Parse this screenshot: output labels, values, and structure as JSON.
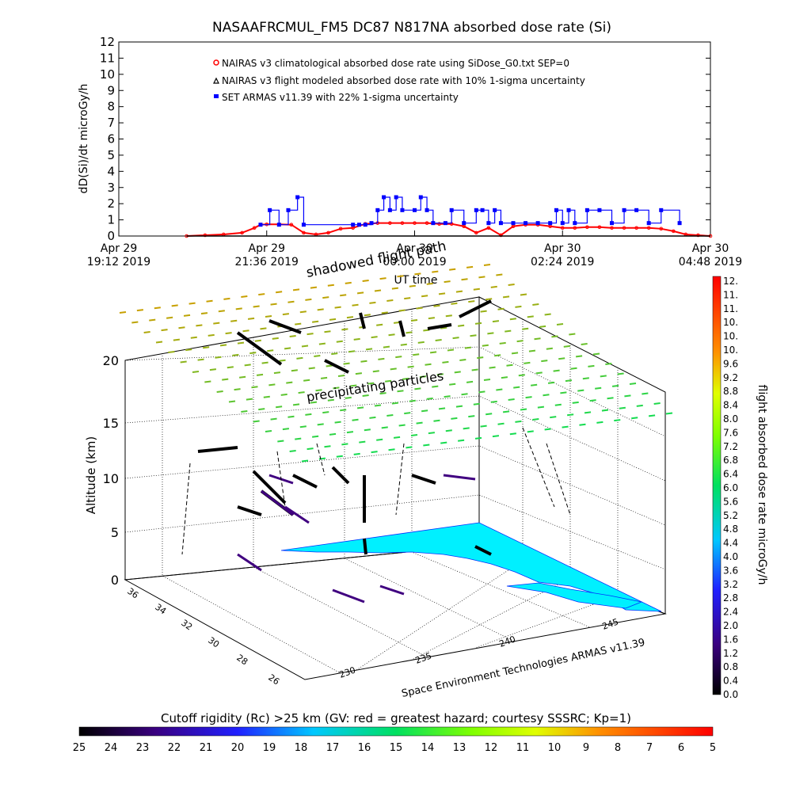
{
  "chart_data": [
    {
      "type": "line",
      "title": "NASAAFRCMUL_FM5 DC87 N817NA absorbed dose rate (Si)",
      "ylabel": "dD(Si)/dt microGy/h",
      "xlabel": "UT time",
      "ylim": [
        0,
        12
      ],
      "yticks": [
        "0",
        "1",
        "2",
        "3",
        "4",
        "5",
        "6",
        "7",
        "8",
        "9",
        "10",
        "11",
        "12"
      ],
      "xticks": [
        {
          "line1": "Apr 29",
          "line2": "19:12 2019"
        },
        {
          "line1": "Apr 29",
          "line2": "21:36 2019"
        },
        {
          "line1": "Apr 30",
          "line2": "00:00 2019"
        },
        {
          "line1": "Apr 30",
          "line2": "02:24 2019"
        },
        {
          "line1": "Apr 30",
          "line2": "04:48 2019"
        }
      ],
      "x_hours_since_first_tick": [
        0,
        2.4,
        4.8,
        7.2,
        9.6
      ],
      "legend": [
        "NAIRAS v3 climatological absorbed dose rate using SiDose_G0.txt SEP=0",
        "NAIRAS v3 flight modeled absorbed dose rate with 10% 1-sigma uncertainty",
        "SET ARMAS v11.39 with 22% 1-sigma uncertainty"
      ],
      "series": [
        {
          "name": "NAIRAS v3 climatological absorbed dose rate using SiDose_G0.txt SEP=0",
          "color": "#ff0000",
          "x": [
            1.1,
            1.4,
            1.7,
            2.0,
            2.2,
            2.3,
            2.4,
            2.6,
            2.8,
            3.0,
            3.2,
            3.4,
            3.6,
            3.8,
            4.0,
            4.2,
            4.4,
            4.6,
            4.8,
            5.0,
            5.2,
            5.4,
            5.6,
            5.8,
            6.0,
            6.2,
            6.4,
            6.6,
            6.8,
            7.0,
            7.2,
            7.4,
            7.6,
            7.8,
            8.0,
            8.2,
            8.4,
            8.6,
            8.8,
            9.0,
            9.2,
            9.4,
            9.6
          ],
          "y": [
            0.0,
            0.05,
            0.1,
            0.2,
            0.5,
            0.7,
            0.72,
            0.72,
            0.7,
            0.2,
            0.1,
            0.2,
            0.45,
            0.5,
            0.75,
            0.8,
            0.8,
            0.8,
            0.8,
            0.8,
            0.75,
            0.75,
            0.6,
            0.2,
            0.5,
            0.05,
            0.6,
            0.7,
            0.7,
            0.6,
            0.5,
            0.5,
            0.55,
            0.55,
            0.5,
            0.5,
            0.5,
            0.5,
            0.45,
            0.3,
            0.1,
            0.05,
            0.0
          ]
        },
        {
          "name": "NAIRAS v3 flight modeled absorbed dose rate with 10% 1-sigma uncertainty",
          "color": "#000000",
          "x": [
            1.1,
            9.6
          ],
          "y": [
            0.0,
            0.0
          ]
        },
        {
          "name": "SET ARMAS v11.39 with 22% 1-sigma uncertainty",
          "color": "#0000ff",
          "x": [
            2.3,
            2.45,
            2.6,
            2.75,
            2.9,
            3.0,
            3.8,
            3.9,
            4.0,
            4.1,
            4.2,
            4.3,
            4.4,
            4.5,
            4.6,
            4.8,
            4.9,
            5.0,
            5.1,
            5.3,
            5.4,
            5.6,
            5.8,
            5.9,
            6.0,
            6.1,
            6.2,
            6.4,
            6.6,
            6.8,
            7.0,
            7.1,
            7.2,
            7.3,
            7.4,
            7.6,
            7.8,
            8.0,
            8.2,
            8.4,
            8.6,
            8.8,
            9.1
          ],
          "y": [
            0.7,
            1.6,
            0.7,
            1.6,
            2.4,
            0.7,
            0.7,
            0.7,
            0.7,
            0.8,
            1.6,
            2.4,
            1.6,
            2.4,
            1.6,
            1.6,
            2.4,
            1.6,
            0.8,
            0.8,
            1.6,
            0.8,
            1.6,
            1.6,
            0.8,
            1.6,
            0.8,
            0.8,
            0.8,
            0.8,
            0.8,
            1.6,
            0.8,
            1.6,
            0.8,
            1.6,
            1.6,
            0.8,
            1.6,
            1.6,
            0.8,
            1.6,
            0.8
          ]
        }
      ]
    },
    {
      "type": "scatter",
      "title": "",
      "ylabel": "Altitude (km)",
      "yticks": [
        "0",
        "5",
        "10",
        "15",
        "20"
      ],
      "ylim": [
        0,
        20
      ],
      "lat_ticks": [
        "36",
        "34",
        "32",
        "30",
        "28",
        "26"
      ],
      "lon_ticks": [
        "230",
        "235",
        "240",
        "245"
      ],
      "annotations": [
        "shadowed flight path",
        "precipitating particles",
        "Space Environment Technologies ARMAS v11.39"
      ],
      "colorbar": {
        "label": "flight absorbed dose rate microGy/h",
        "ticks": [
          "12.",
          "11.",
          "11.",
          "10.",
          "10.",
          "10.",
          "9.6",
          "9.2",
          "8.8",
          "8.4",
          "8.0",
          "7.6",
          "7.2",
          "6.8",
          "6.4",
          "6.0",
          "5.6",
          "5.2",
          "4.8",
          "4.4",
          "4.0",
          "3.6",
          "3.2",
          "2.8",
          "2.4",
          "2.0",
          "1.6",
          "1.2",
          "0.8",
          "0.4",
          "0.0"
        ]
      },
      "cutoff_bar": {
        "label": "Cutoff rigidity (Rc) >25 km (GV: red = greatest hazard; courtesy SSSRC; Kp=1)",
        "ticks": [
          "25",
          "24",
          "23",
          "22",
          "21",
          "20",
          "19",
          "18",
          "17",
          "16",
          "15",
          "14",
          "13",
          "12",
          "11",
          "10",
          "9",
          "8",
          "7",
          "6",
          "5"
        ]
      }
    }
  ]
}
